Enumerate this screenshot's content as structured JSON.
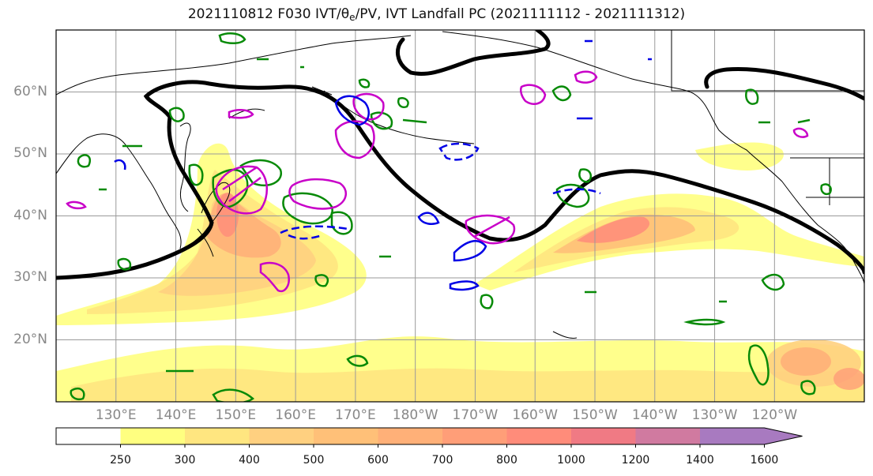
{
  "title": {
    "prefix": "2021110812 F030 IVT/",
    "theta": "θ",
    "theta_sub": "e",
    "suffix": "/PV, IVT Landfall PC (2021111112 - 2021111312)"
  },
  "map": {
    "lon_range": [
      120,
      255
    ],
    "lat_range": [
      10,
      70
    ],
    "lat_ticks": [
      "20°N",
      "30°N",
      "40°N",
      "50°N",
      "60°N"
    ],
    "lon_ticks": [
      "130°E",
      "140°E",
      "150°E",
      "160°E",
      "170°E",
      "180°W",
      "170°W",
      "160°W",
      "150°W",
      "140°W",
      "130°W",
      "120°W"
    ],
    "gridlines": true
  },
  "colorbar": {
    "labels": [
      "250",
      "300",
      "400",
      "500",
      "600",
      "700",
      "800",
      "1000",
      "1200",
      "1400",
      "1600"
    ],
    "colors": [
      "#ffffff",
      "#ffff80",
      "#ffe680",
      "#ffd080",
      "#ffc078",
      "#ffb078",
      "#ff9e78",
      "#ff8c7a",
      "#f07a84",
      "#d07aa0",
      "#a87ac0"
    ],
    "extend": "max"
  }
}
